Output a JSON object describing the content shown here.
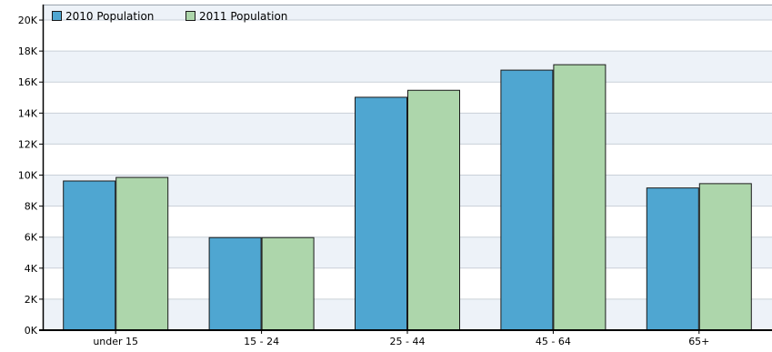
{
  "chart_data": {
    "type": "bar",
    "title": "",
    "xlabel": "",
    "ylabel": "",
    "categories": [
      "under 15",
      "15 - 24",
      "25 - 44",
      "45 - 64",
      "65+"
    ],
    "series": [
      {
        "name": "2010 Population",
        "values": [
          9650,
          6000,
          15050,
          16800,
          9200
        ],
        "color": "#4fa6d1"
      },
      {
        "name": "2011 Population",
        "values": [
          9880,
          6000,
          15500,
          17150,
          9480
        ],
        "color": "#add6ab"
      }
    ],
    "ylim": [
      0,
      21000
    ],
    "yticks": [
      0,
      2000,
      4000,
      6000,
      8000,
      10000,
      12000,
      14000,
      16000,
      18000,
      20000
    ],
    "ytick_labels": [
      "0K",
      "2K",
      "4K",
      "6K",
      "8K",
      "10K",
      "12K",
      "14K",
      "16K",
      "18K",
      "20K"
    ],
    "grid": true,
    "legend_position": "top-left",
    "band_colors": [
      "#edf2f8",
      "#ffffff"
    ]
  }
}
